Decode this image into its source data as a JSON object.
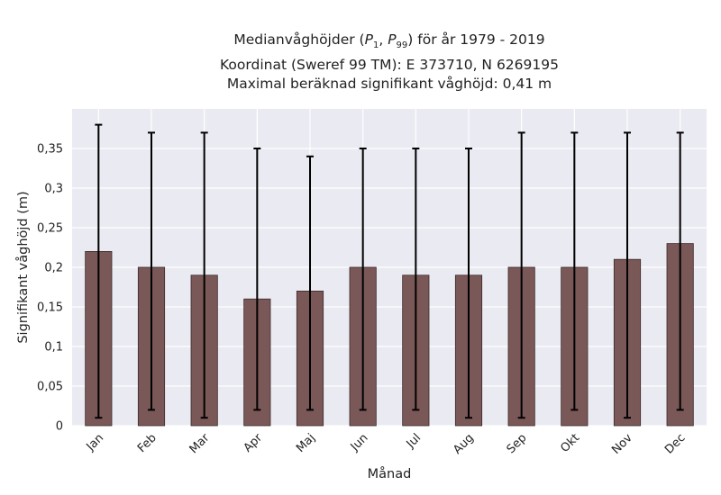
{
  "chart_data": {
    "type": "bar",
    "title": "Medianvåghöjder (P1, P99) för år 1979 - 2019",
    "title_parts": {
      "prefix": "Medianvåghöjder (",
      "p1": "P",
      "p1_sub": "1",
      "sep": ", ",
      "p99": "P",
      "p99_sub": "99",
      "suffix": ") för år 1979 - 2019"
    },
    "subtitle_lines": [
      "Koordinat (Sweref 99 TM): E 373710, N 6269195",
      "Maximal beräknad signifikant våghöjd: 0,41 m"
    ],
    "xlabel": "Månad",
    "ylabel": "Signifikant våghöjd (m)",
    "categories": [
      "Jan",
      "Feb",
      "Mar",
      "Apr",
      "Maj",
      "Jun",
      "Jul",
      "Aug",
      "Sep",
      "Okt",
      "Nov",
      "Dec"
    ],
    "values": [
      0.22,
      0.2,
      0.19,
      0.16,
      0.17,
      0.2,
      0.19,
      0.19,
      0.2,
      0.2,
      0.21,
      0.23
    ],
    "error_low": [
      0.01,
      0.02,
      0.01,
      0.02,
      0.02,
      0.02,
      0.02,
      0.01,
      0.01,
      0.02,
      0.01,
      0.02
    ],
    "error_high": [
      0.38,
      0.37,
      0.37,
      0.35,
      0.34,
      0.35,
      0.35,
      0.35,
      0.37,
      0.37,
      0.37,
      0.37
    ],
    "ylim": [
      0,
      0.4
    ],
    "yticks": [
      0,
      0.05,
      0.1,
      0.15,
      0.2,
      0.25,
      0.3,
      0.35
    ],
    "ytick_labels": [
      "0",
      "0,05",
      "0,1",
      "0,15",
      "0,2",
      "0,25",
      "0,3",
      "0,35"
    ],
    "grid": true,
    "colors": {
      "bar": "#7b5858",
      "bar_edge": "#3a2a2a",
      "error": "#000000",
      "plot_bg": "#eaeaf2",
      "grid": "#ffffff"
    }
  }
}
